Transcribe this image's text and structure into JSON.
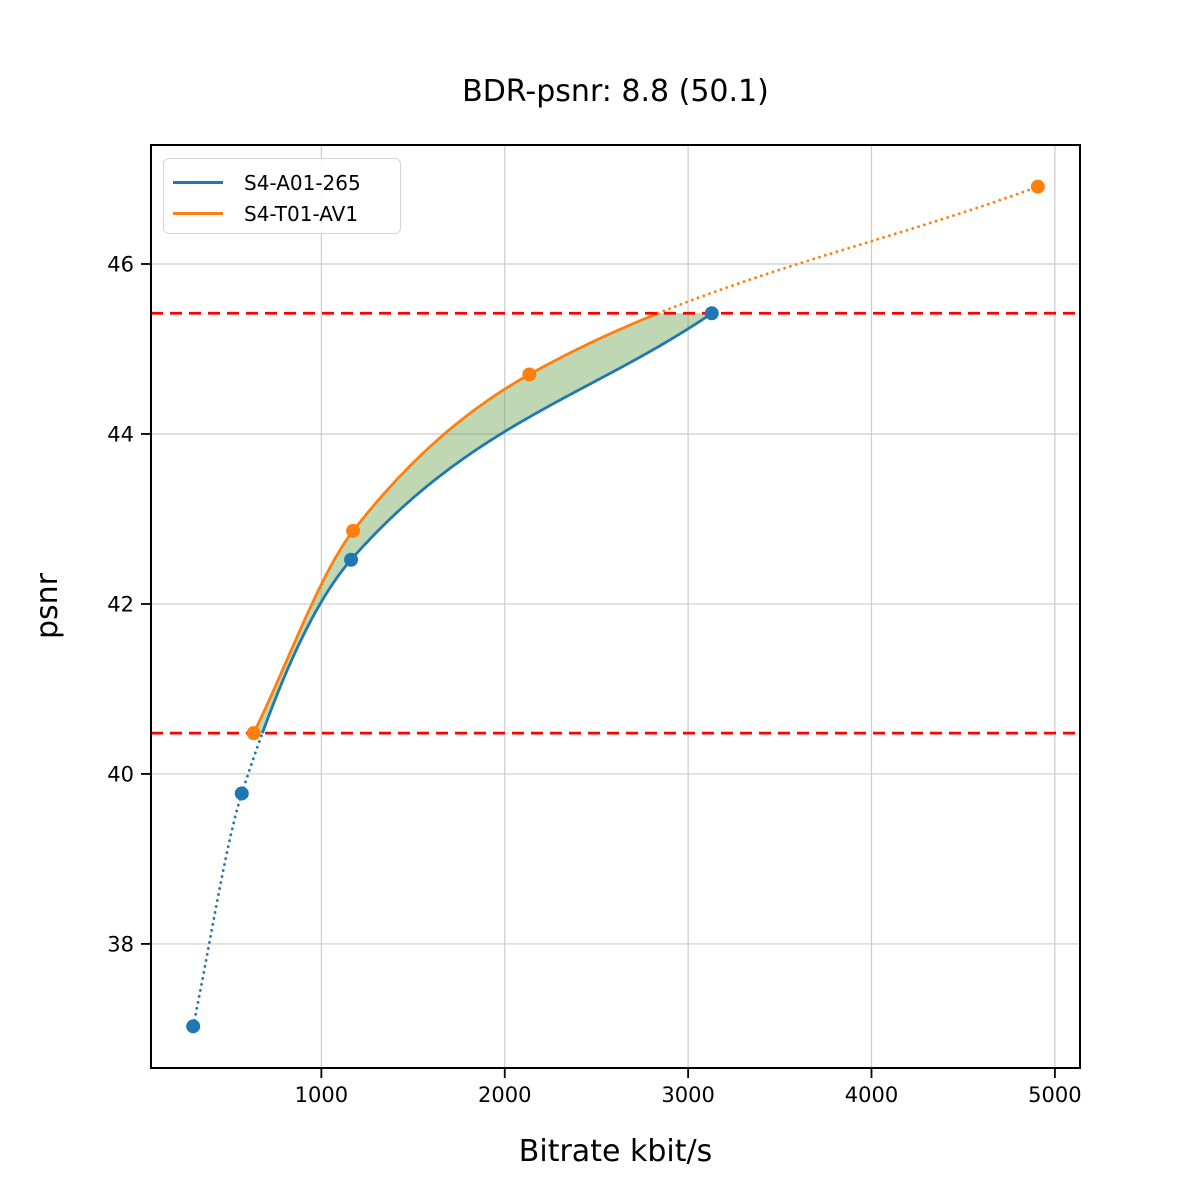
{
  "chart_data": {
    "type": "line",
    "title": "BDR-psnr: 8.8 (50.1)",
    "xlabel": "Bitrate kbit/s",
    "ylabel": "psnr",
    "xlim": [
      71,
      5137
    ],
    "ylim": [
      36.54,
      47.4
    ],
    "xticks": [
      1000,
      2000,
      3000,
      4000,
      5000
    ],
    "yticks": [
      38,
      40,
      42,
      44,
      46
    ],
    "grid": true,
    "grid_color": "#cccccc",
    "legend_position": "upper-left",
    "series": [
      {
        "name": "S4-A01-265",
        "color": "#1f77b4",
        "points_x": [
          301,
          566,
          1162,
          3129
        ],
        "points_y": [
          37.03,
          39.77,
          42.52,
          45.42
        ],
        "style_note": "solid inside overlap psnr range, dotted below it, round markers"
      },
      {
        "name": "S4-T01-AV1",
        "color": "#ff7f0e",
        "points_x": [
          631,
          1173,
          2134,
          4907
        ],
        "points_y": [
          40.48,
          42.86,
          44.7,
          46.91
        ],
        "style_note": "solid inside overlap psnr range, dotted above it, round markers"
      }
    ],
    "overlap_psnr_range": [
      40.48,
      45.42
    ],
    "hlines": {
      "values": [
        40.48,
        45.42
      ],
      "color": "#ff0000",
      "style": "dashed"
    },
    "fill_between": {
      "color": "#6aa04a",
      "opacity": 0.42,
      "psnr_range": [
        40.48,
        45.42
      ],
      "description": "green BD area enclosed by the two curves and the two overlap bounds"
    }
  },
  "legend": {
    "items": [
      {
        "label": "S4-A01-265",
        "color": "#1f77b4"
      },
      {
        "label": "S4-T01-AV1",
        "color": "#ff7f0e"
      }
    ]
  }
}
